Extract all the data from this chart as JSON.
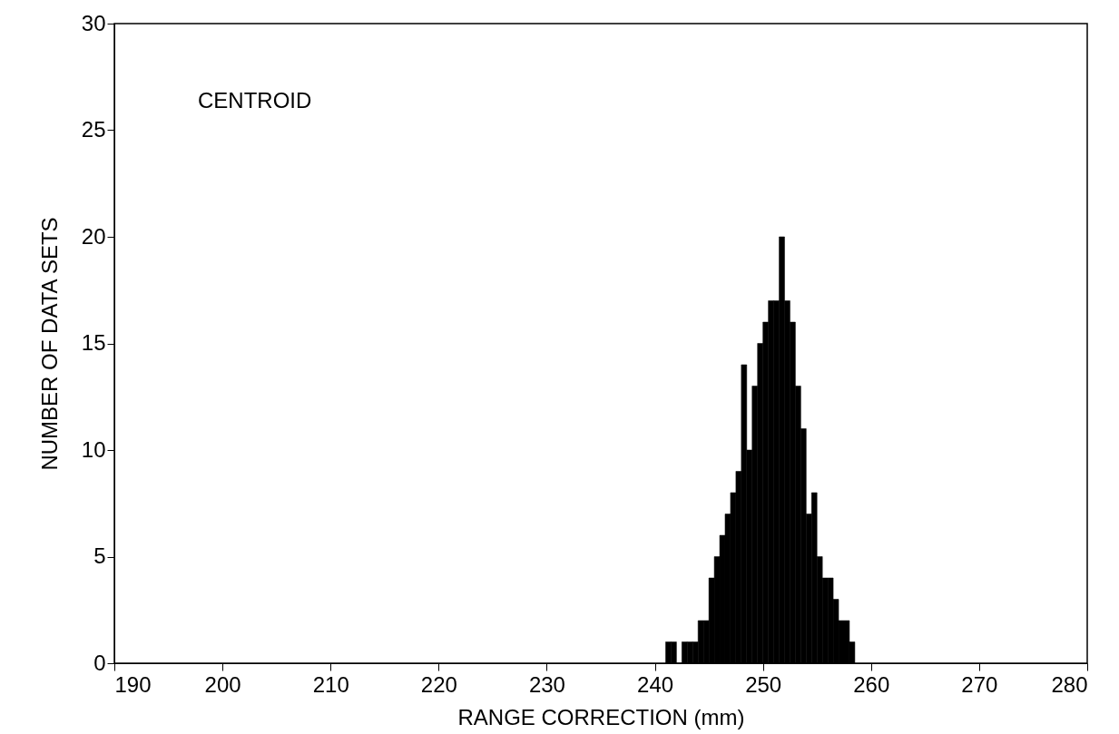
{
  "chart_data": {
    "type": "histogram",
    "xlabel": "RANGE CORRECTION (mm)",
    "ylabel": "NUMBER OF DATA SETS",
    "annotations": [
      "CENTROID"
    ],
    "bins": [
      241,
      241.5,
      242,
      242.5,
      243,
      243.5,
      244,
      244.5,
      245,
      245.5,
      246,
      246.5,
      247,
      247.5,
      248,
      248.5,
      249,
      249.5,
      250,
      250.5,
      251,
      251.5,
      252,
      252.5,
      253,
      253.5,
      254,
      254.5,
      255,
      255.5,
      256,
      256.5,
      257,
      257.5,
      258,
      258.5
    ],
    "values": [
      1,
      1,
      0,
      1,
      1,
      1,
      2,
      2,
      4,
      5,
      6,
      7,
      8,
      9,
      14,
      10,
      13,
      15,
      16,
      17,
      17,
      20,
      17,
      16,
      13,
      11,
      7,
      8,
      5,
      4,
      4,
      3,
      2,
      2,
      1
    ],
    "color": "#000000",
    "xlim": [
      190,
      280
    ],
    "xticks": [
      190,
      200,
      210,
      220,
      230,
      240,
      250,
      260,
      270,
      280
    ],
    "ylim": [
      0,
      30
    ],
    "yticks": [
      0,
      5,
      10,
      15,
      20,
      25,
      30
    ],
    "grid": false
  }
}
